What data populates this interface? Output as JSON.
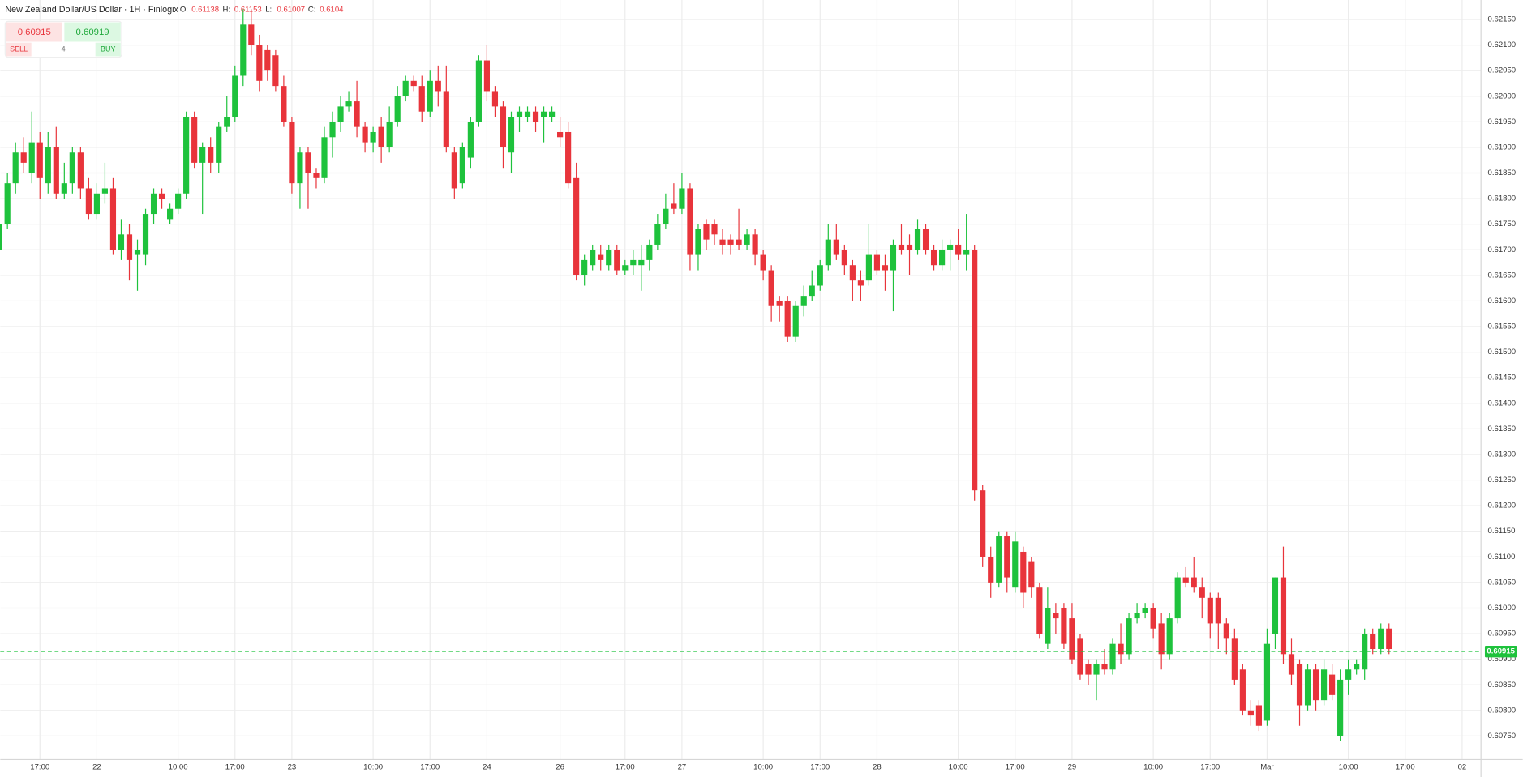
{
  "chart_data": {
    "type": "candlestick",
    "title": "New Zealand Dollar/US Dollar · 1H · Finlogix",
    "ohlc_legend": [
      {
        "label": "O:",
        "value": 0.61138
      },
      {
        "label": "H:",
        "value": 0.61153
      },
      {
        "label": "L:",
        "value": 0.61007
      },
      {
        "label": "C:",
        "value": 0.6104
      }
    ],
    "up_color": "#1ec23c",
    "down_color": "#e8343b",
    "grid": true,
    "ylim": [
      0.60704,
      0.62188
    ],
    "yticks": [
      {
        "value": 0.6075,
        "label": "0.60750"
      },
      {
        "value": 0.608,
        "label": "0.60800"
      },
      {
        "value": 0.6085,
        "label": "0.60850"
      },
      {
        "value": 0.609,
        "label": "0.60900"
      },
      {
        "value": 0.6095,
        "label": "0.60950"
      },
      {
        "value": 0.61,
        "label": "0.61000"
      },
      {
        "value": 0.6105,
        "label": "0.61050"
      },
      {
        "value": 0.611,
        "label": "0.61100"
      },
      {
        "value": 0.6115,
        "label": "0.61150"
      },
      {
        "value": 0.612,
        "label": "0.61200"
      },
      {
        "value": 0.6125,
        "label": "0.61250"
      },
      {
        "value": 0.613,
        "label": "0.61300"
      },
      {
        "value": 0.6135,
        "label": "0.61350"
      },
      {
        "value": 0.614,
        "label": "0.61400"
      },
      {
        "value": 0.6145,
        "label": "0.61450"
      },
      {
        "value": 0.615,
        "label": "0.61500"
      },
      {
        "value": 0.6155,
        "label": "0.61550"
      },
      {
        "value": 0.616,
        "label": "0.61600"
      },
      {
        "value": 0.6165,
        "label": "0.61650"
      },
      {
        "value": 0.617,
        "label": "0.61700"
      },
      {
        "value": 0.6175,
        "label": "0.61750"
      },
      {
        "value": 0.618,
        "label": "0.61800"
      },
      {
        "value": 0.6185,
        "label": "0.61850"
      },
      {
        "value": 0.619,
        "label": "0.61900"
      },
      {
        "value": 0.6195,
        "label": "0.61950"
      },
      {
        "value": 0.62,
        "label": "0.62000"
      },
      {
        "value": 0.6205,
        "label": "0.62050"
      },
      {
        "value": 0.621,
        "label": "0.62100"
      },
      {
        "value": 0.6215,
        "label": "0.62150"
      }
    ],
    "last_price": 0.60915,
    "categories": [
      null,
      null,
      null,
      null,
      null,
      "17:00",
      null,
      null,
      null,
      null,
      null,
      null,
      "22",
      null,
      null,
      null,
      null,
      null,
      null,
      null,
      null,
      null,
      "10:00",
      null,
      null,
      null,
      null,
      null,
      null,
      "17:00",
      null,
      null,
      null,
      null,
      null,
      null,
      "23",
      null,
      null,
      null,
      null,
      null,
      null,
      null,
      null,
      null,
      "10:00",
      null,
      null,
      null,
      null,
      null,
      null,
      "17:00",
      null,
      null,
      null,
      null,
      null,
      null,
      "24",
      null,
      null,
      null,
      null,
      null,
      null,
      null,
      null,
      "26",
      null,
      null,
      null,
      null,
      null,
      null,
      null,
      "17:00",
      null,
      null,
      null,
      null,
      null,
      null,
      "27",
      null,
      null,
      null,
      null,
      null,
      null,
      null,
      null,
      null,
      "10:00",
      null,
      null,
      null,
      null,
      null,
      null,
      "17:00",
      null,
      null,
      null,
      null,
      null,
      null,
      "28",
      null,
      null,
      null,
      null,
      null,
      null,
      null,
      null,
      null,
      "10:00",
      null,
      null,
      null,
      null,
      null,
      null,
      "17:00",
      null,
      null,
      null,
      null,
      null,
      null,
      "29",
      null,
      null,
      null,
      null,
      null,
      null,
      null,
      null,
      null,
      "10:00",
      null,
      null,
      null,
      null,
      null,
      null,
      "17:00",
      null,
      null,
      null,
      null,
      null,
      null,
      "Mar",
      null,
      null,
      null,
      null,
      null,
      null,
      null,
      null,
      null,
      "10:00",
      null,
      null,
      null,
      null,
      null,
      null,
      "17:00",
      null,
      null,
      null,
      null,
      null,
      null,
      "02"
    ],
    "ohlc": [
      [
        0.617,
        0.6176,
        0.6169,
        0.6175
      ],
      [
        0.6175,
        0.6185,
        0.6174,
        0.6183
      ],
      [
        0.6183,
        0.6191,
        0.6181,
        0.6189
      ],
      [
        0.6189,
        0.6192,
        0.6185,
        0.6187
      ],
      [
        0.6185,
        0.6197,
        0.6183,
        0.6191
      ],
      [
        0.6191,
        0.6193,
        0.618,
        0.6184
      ],
      [
        0.6183,
        0.6193,
        0.6181,
        0.619
      ],
      [
        0.619,
        0.6194,
        0.618,
        0.6181
      ],
      [
        0.6181,
        0.6187,
        0.618,
        0.6183
      ],
      [
        0.6183,
        0.619,
        0.6181,
        0.6189
      ],
      [
        0.6189,
        0.619,
        0.618,
        0.6182
      ],
      [
        0.6182,
        0.6184,
        0.6176,
        0.6177
      ],
      [
        0.6177,
        0.6183,
        0.6176,
        0.6181
      ],
      [
        0.6181,
        0.6187,
        0.6179,
        0.6182
      ],
      [
        0.6182,
        0.6184,
        0.6169,
        0.617
      ],
      [
        0.617,
        0.6176,
        0.6168,
        0.6173
      ],
      [
        0.6173,
        0.6175,
        0.6164,
        0.6168
      ],
      [
        0.6169,
        0.6172,
        0.6162,
        0.617
      ],
      [
        0.6169,
        0.6178,
        0.6167,
        0.6177
      ],
      [
        0.6177,
        0.6182,
        0.6175,
        0.6181
      ],
      [
        0.6181,
        0.6182,
        0.6178,
        0.618
      ],
      [
        0.6176,
        0.6179,
        0.6175,
        0.6178
      ],
      [
        0.6178,
        0.6182,
        0.6177,
        0.6181
      ],
      [
        0.6181,
        0.6197,
        0.618,
        0.6196
      ],
      [
        0.6196,
        0.6197,
        0.6186,
        0.6187
      ],
      [
        0.6187,
        0.6191,
        0.6177,
        0.619
      ],
      [
        0.619,
        0.6192,
        0.6185,
        0.6187
      ],
      [
        0.6187,
        0.6195,
        0.6185,
        0.6194
      ],
      [
        0.6194,
        0.62,
        0.6193,
        0.6196
      ],
      [
        0.6196,
        0.6206,
        0.6195,
        0.6204
      ],
      [
        0.6204,
        0.6217,
        0.6202,
        0.6214
      ],
      [
        0.6214,
        0.6217,
        0.6208,
        0.621
      ],
      [
        0.621,
        0.6212,
        0.6201,
        0.6203
      ],
      [
        0.6209,
        0.621,
        0.6203,
        0.6205
      ],
      [
        0.6208,
        0.6209,
        0.6201,
        0.6202
      ],
      [
        0.6202,
        0.6204,
        0.6194,
        0.6195
      ],
      [
        0.6195,
        0.6196,
        0.6181,
        0.6183
      ],
      [
        0.6183,
        0.619,
        0.6178,
        0.6189
      ],
      [
        0.6189,
        0.619,
        0.6178,
        0.6185
      ],
      [
        0.6185,
        0.6186,
        0.6182,
        0.6184
      ],
      [
        0.6184,
        0.6194,
        0.6183,
        0.6192
      ],
      [
        0.6192,
        0.6197,
        0.6188,
        0.6195
      ],
      [
        0.6195,
        0.62,
        0.6193,
        0.6198
      ],
      [
        0.6198,
        0.6201,
        0.6197,
        0.6199
      ],
      [
        0.6199,
        0.6203,
        0.6192,
        0.6194
      ],
      [
        0.6194,
        0.6195,
        0.6189,
        0.6191
      ],
      [
        0.6191,
        0.6194,
        0.6189,
        0.6193
      ],
      [
        0.6194,
        0.6196,
        0.6187,
        0.619
      ],
      [
        0.619,
        0.6198,
        0.6189,
        0.6195
      ],
      [
        0.6195,
        0.6202,
        0.6194,
        0.62
      ],
      [
        0.62,
        0.6204,
        0.6199,
        0.6203
      ],
      [
        0.6203,
        0.6204,
        0.6201,
        0.6202
      ],
      [
        0.6202,
        0.6204,
        0.6195,
        0.6197
      ],
      [
        0.6197,
        0.6205,
        0.6196,
        0.6203
      ],
      [
        0.6203,
        0.6206,
        0.6198,
        0.6201
      ],
      [
        0.6201,
        0.6206,
        0.6189,
        0.619
      ],
      [
        0.6189,
        0.619,
        0.618,
        0.6182
      ],
      [
        0.6183,
        0.6191,
        0.6182,
        0.619
      ],
      [
        0.6188,
        0.6196,
        0.6186,
        0.6195
      ],
      [
        0.6195,
        0.6208,
        0.6194,
        0.6207
      ],
      [
        0.6207,
        0.621,
        0.6199,
        0.6201
      ],
      [
        0.6201,
        0.6202,
        0.6196,
        0.6198
      ],
      [
        0.6198,
        0.6199,
        0.6186,
        0.619
      ],
      [
        0.6189,
        0.6197,
        0.6185,
        0.6196
      ],
      [
        0.6196,
        0.6198,
        0.6193,
        0.6197
      ],
      [
        0.6196,
        0.6198,
        0.6195,
        0.6197
      ],
      [
        0.6197,
        0.6198,
        0.6193,
        0.6195
      ],
      [
        0.6196,
        0.6198,
        0.6191,
        0.6197
      ],
      [
        0.6196,
        0.6198,
        0.6195,
        0.6197
      ],
      [
        0.6193,
        0.6196,
        0.619,
        0.6192
      ],
      [
        0.6193,
        0.6195,
        0.6182,
        0.6183
      ],
      [
        0.6184,
        0.6187,
        0.6164,
        0.6165
      ],
      [
        0.6165,
        0.6169,
        0.6163,
        0.6168
      ],
      [
        0.6167,
        0.6171,
        0.6166,
        0.617
      ],
      [
        0.6169,
        0.6171,
        0.6166,
        0.6168
      ],
      [
        0.6167,
        0.6171,
        0.6166,
        0.617
      ],
      [
        0.617,
        0.6171,
        0.6165,
        0.6166
      ],
      [
        0.6166,
        0.6168,
        0.6165,
        0.6167
      ],
      [
        0.6167,
        0.617,
        0.6165,
        0.6168
      ],
      [
        0.6167,
        0.6171,
        0.6162,
        0.6168
      ],
      [
        0.6168,
        0.6172,
        0.6166,
        0.6171
      ],
      [
        0.6171,
        0.6177,
        0.617,
        0.6175
      ],
      [
        0.6175,
        0.6181,
        0.6174,
        0.6178
      ],
      [
        0.6179,
        0.6183,
        0.6177,
        0.6178
      ],
      [
        0.6178,
        0.6185,
        0.6177,
        0.6182
      ],
      [
        0.6182,
        0.6183,
        0.6166,
        0.6169
      ],
      [
        0.6169,
        0.6175,
        0.6166,
        0.6174
      ],
      [
        0.6175,
        0.6176,
        0.617,
        0.6172
      ],
      [
        0.6175,
        0.6176,
        0.6171,
        0.6173
      ],
      [
        0.6172,
        0.6174,
        0.6169,
        0.6171
      ],
      [
        0.6172,
        0.6173,
        0.6169,
        0.6171
      ],
      [
        0.6172,
        0.6178,
        0.617,
        0.6171
      ],
      [
        0.6171,
        0.6174,
        0.617,
        0.6173
      ],
      [
        0.6173,
        0.6174,
        0.6167,
        0.6169
      ],
      [
        0.6169,
        0.617,
        0.6164,
        0.6166
      ],
      [
        0.6166,
        0.6167,
        0.6156,
        0.6159
      ],
      [
        0.616,
        0.6161,
        0.6156,
        0.6159
      ],
      [
        0.616,
        0.6161,
        0.6152,
        0.6153
      ],
      [
        0.6153,
        0.616,
        0.6152,
        0.6159
      ],
      [
        0.6159,
        0.6163,
        0.6157,
        0.6161
      ],
      [
        0.6161,
        0.6166,
        0.616,
        0.6163
      ],
      [
        0.6163,
        0.6168,
        0.6162,
        0.6167
      ],
      [
        0.6167,
        0.6175,
        0.6166,
        0.6172
      ],
      [
        0.6172,
        0.6175,
        0.6168,
        0.6169
      ],
      [
        0.617,
        0.6171,
        0.6165,
        0.6167
      ],
      [
        0.6167,
        0.6168,
        0.616,
        0.6164
      ],
      [
        0.6164,
        0.6166,
        0.616,
        0.6163
      ],
      [
        0.6164,
        0.6175,
        0.6163,
        0.6169
      ],
      [
        0.6169,
        0.617,
        0.6165,
        0.6166
      ],
      [
        0.6167,
        0.6169,
        0.6162,
        0.6166
      ],
      [
        0.6166,
        0.6172,
        0.6158,
        0.6171
      ],
      [
        0.6171,
        0.6175,
        0.6169,
        0.617
      ],
      [
        0.6171,
        0.6173,
        0.6165,
        0.617
      ],
      [
        0.617,
        0.6176,
        0.6169,
        0.6174
      ],
      [
        0.6174,
        0.6175,
        0.6169,
        0.617
      ],
      [
        0.617,
        0.6171,
        0.6166,
        0.6167
      ],
      [
        0.6167,
        0.6172,
        0.6166,
        0.617
      ],
      [
        0.617,
        0.6172,
        0.6166,
        0.6171
      ],
      [
        0.6171,
        0.6174,
        0.6168,
        0.6169
      ],
      [
        0.6169,
        0.6177,
        0.6166,
        0.617
      ],
      [
        0.617,
        0.6171,
        0.6121,
        0.6123
      ],
      [
        0.6123,
        0.6124,
        0.6108,
        0.611
      ],
      [
        0.611,
        0.6112,
        0.6102,
        0.6105
      ],
      [
        0.6105,
        0.6115,
        0.6104,
        0.6114
      ],
      [
        0.6114,
        0.6115,
        0.6103,
        0.6106
      ],
      [
        0.6104,
        0.6115,
        0.6103,
        0.6113
      ],
      [
        0.6111,
        0.6112,
        0.61,
        0.6103
      ],
      [
        0.6109,
        0.611,
        0.6102,
        0.6104
      ],
      [
        0.6104,
        0.6105,
        0.6094,
        0.6095
      ],
      [
        0.6093,
        0.6104,
        0.6092,
        0.61
      ],
      [
        0.6099,
        0.6101,
        0.6095,
        0.6098
      ],
      [
        0.61,
        0.6101,
        0.6092,
        0.6093
      ],
      [
        0.6098,
        0.6101,
        0.6089,
        0.609
      ],
      [
        0.6094,
        0.6095,
        0.6086,
        0.6087
      ],
      [
        0.6089,
        0.609,
        0.6085,
        0.6087
      ],
      [
        0.6087,
        0.609,
        0.6082,
        0.6089
      ],
      [
        0.6089,
        0.6092,
        0.6087,
        0.6088
      ],
      [
        0.6088,
        0.6094,
        0.6087,
        0.6093
      ],
      [
        0.6093,
        0.6097,
        0.6089,
        0.6091
      ],
      [
        0.6091,
        0.6099,
        0.609,
        0.6098
      ],
      [
        0.6098,
        0.6101,
        0.6097,
        0.6099
      ],
      [
        0.6099,
        0.6101,
        0.6098,
        0.61
      ],
      [
        0.61,
        0.6101,
        0.6094,
        0.6096
      ],
      [
        0.6097,
        0.6099,
        0.6088,
        0.6091
      ],
      [
        0.6091,
        0.6099,
        0.609,
        0.6098
      ],
      [
        0.6098,
        0.6107,
        0.6097,
        0.6106
      ],
      [
        0.6106,
        0.6108,
        0.6104,
        0.6105
      ],
      [
        0.6106,
        0.611,
        0.6103,
        0.6104
      ],
      [
        0.6104,
        0.6106,
        0.6098,
        0.6102
      ],
      [
        0.6102,
        0.6103,
        0.6094,
        0.6097
      ],
      [
        0.6102,
        0.6103,
        0.6092,
        0.6097
      ],
      [
        0.6097,
        0.6098,
        0.6091,
        0.6094
      ],
      [
        0.6094,
        0.6096,
        0.6085,
        0.6086
      ],
      [
        0.6088,
        0.6089,
        0.6079,
        0.608
      ],
      [
        0.608,
        0.6082,
        0.6077,
        0.6079
      ],
      [
        0.6081,
        0.6082,
        0.6076,
        0.6077
      ],
      [
        0.6078,
        0.6096,
        0.6077,
        0.6093
      ],
      [
        0.6095,
        0.6106,
        0.6092,
        0.6106
      ],
      [
        0.6106,
        0.6112,
        0.6089,
        0.6091
      ],
      [
        0.6091,
        0.6094,
        0.6085,
        0.6087
      ],
      [
        0.6089,
        0.609,
        0.6077,
        0.6081
      ],
      [
        0.6081,
        0.6089,
        0.608,
        0.6088
      ],
      [
        0.6088,
        0.6089,
        0.608,
        0.6082
      ],
      [
        0.6082,
        0.609,
        0.6081,
        0.6088
      ],
      [
        0.6087,
        0.6089,
        0.6082,
        0.6083
      ],
      [
        0.6075,
        0.6088,
        0.6074,
        0.6086
      ],
      [
        0.6086,
        0.609,
        0.6083,
        0.6088
      ],
      [
        0.6088,
        0.609,
        0.6087,
        0.6089
      ],
      [
        0.6088,
        0.6096,
        0.6086,
        0.6095
      ],
      [
        0.6095,
        0.6096,
        0.6091,
        0.6092
      ],
      [
        0.6092,
        0.6097,
        0.6091,
        0.6096
      ],
      [
        0.6096,
        0.6097,
        0.6091,
        0.6092
      ],
      null,
      null,
      null,
      null,
      null,
      null,
      null,
      null,
      null
    ]
  },
  "trade_panel": {
    "sell_price": 0.60915,
    "sell_label": "SELL",
    "spread": 4,
    "buy_price": 0.60919,
    "buy_label": "BUY"
  }
}
